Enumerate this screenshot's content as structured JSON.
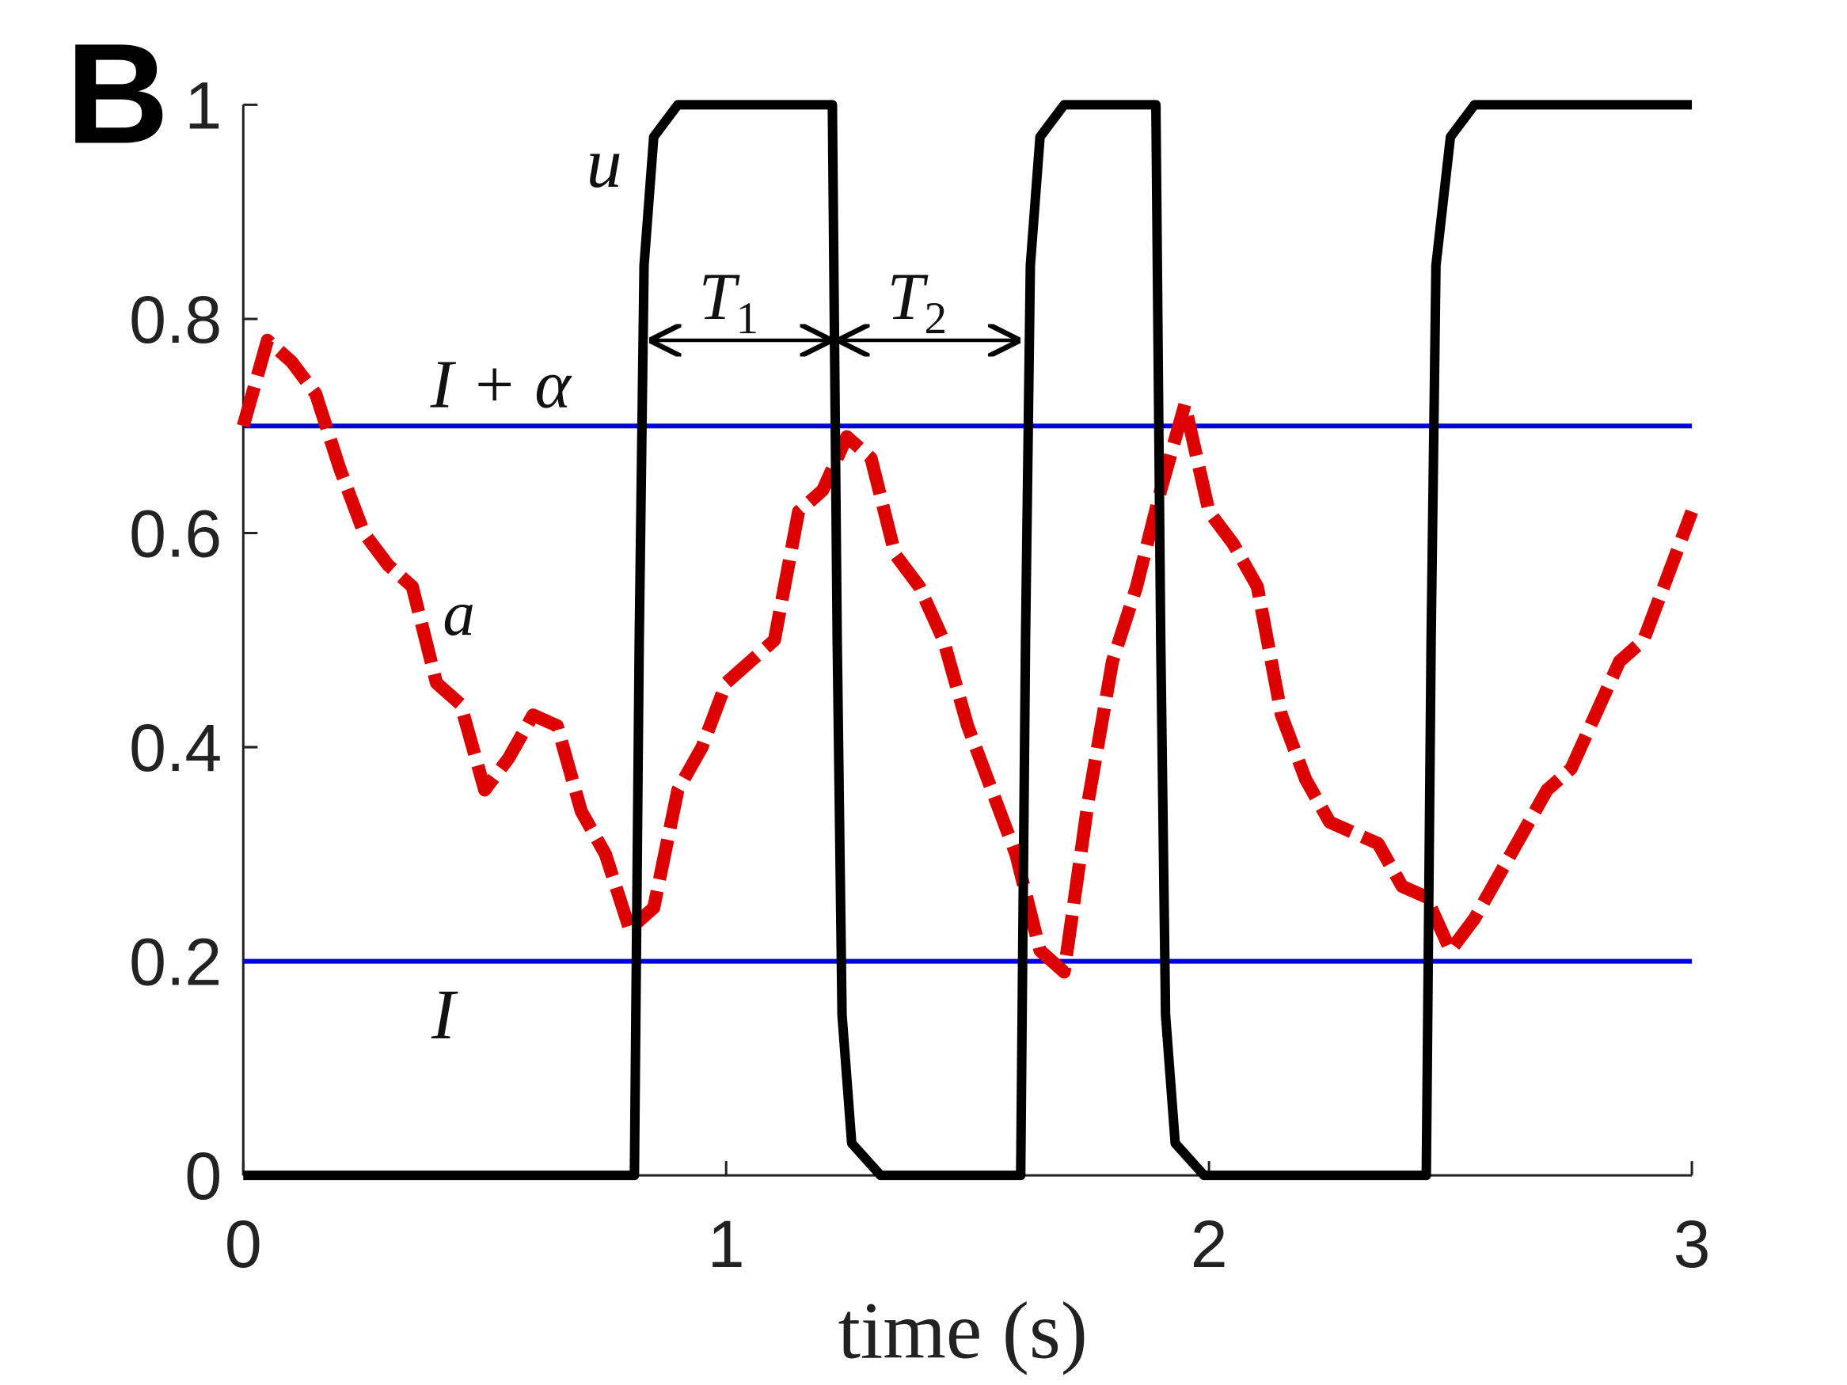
{
  "chart_data": {
    "type": "line",
    "panel_label": "B",
    "xlabel": "time (s)",
    "xlim": [
      0,
      3
    ],
    "xticks": [
      0,
      1,
      2,
      3
    ],
    "ylim": [
      0,
      1
    ],
    "yticks": [
      0,
      0.2,
      0.4,
      0.6,
      0.8,
      1
    ],
    "series": [
      {
        "name": "u",
        "color": "#000000",
        "style": "solid",
        "x": [
          0,
          0.81,
          0.82,
          0.83,
          0.85,
          0.9,
          1.22,
          1.23,
          1.24,
          1.26,
          1.32,
          1.61,
          1.62,
          1.63,
          1.65,
          1.7,
          1.89,
          1.9,
          1.91,
          1.93,
          1.99,
          2.45,
          2.46,
          2.47,
          2.5,
          2.55,
          3
        ],
        "values": [
          0,
          0,
          0.5,
          0.85,
          0.97,
          1,
          1,
          0.5,
          0.15,
          0.03,
          0,
          0,
          0.5,
          0.85,
          0.97,
          1,
          1,
          0.5,
          0.15,
          0.03,
          0,
          0,
          0.5,
          0.85,
          0.97,
          1,
          1
        ]
      },
      {
        "name": "a",
        "color": "#dd0000",
        "style": "dashed",
        "x": [
          0,
          0.05,
          0.1,
          0.15,
          0.2,
          0.25,
          0.3,
          0.35,
          0.4,
          0.45,
          0.5,
          0.55,
          0.6,
          0.65,
          0.7,
          0.75,
          0.8,
          0.85,
          0.9,
          0.95,
          1,
          1.05,
          1.1,
          1.15,
          1.2,
          1.25,
          1.3,
          1.35,
          1.4,
          1.45,
          1.5,
          1.55,
          1.6,
          1.65,
          1.7,
          1.75,
          1.8,
          1.85,
          1.9,
          1.95,
          2,
          2.05,
          2.1,
          2.15,
          2.2,
          2.25,
          2.3,
          2.35,
          2.4,
          2.45,
          2.5,
          2.55,
          2.6,
          2.65,
          2.7,
          2.75,
          2.8,
          2.85,
          2.9,
          2.95,
          3
        ],
        "values": [
          0.7,
          0.78,
          0.76,
          0.73,
          0.66,
          0.6,
          0.57,
          0.55,
          0.46,
          0.44,
          0.36,
          0.39,
          0.43,
          0.42,
          0.34,
          0.3,
          0.23,
          0.25,
          0.36,
          0.4,
          0.46,
          0.48,
          0.5,
          0.62,
          0.64,
          0.69,
          0.67,
          0.58,
          0.55,
          0.5,
          0.42,
          0.36,
          0.3,
          0.21,
          0.19,
          0.35,
          0.48,
          0.55,
          0.64,
          0.72,
          0.62,
          0.59,
          0.55,
          0.43,
          0.37,
          0.33,
          0.32,
          0.31,
          0.27,
          0.26,
          0.21,
          0.24,
          0.28,
          0.32,
          0.36,
          0.38,
          0.43,
          0.48,
          0.5,
          0.56,
          0.62
        ]
      },
      {
        "name": "I + α",
        "color": "#0000dd",
        "style": "solid",
        "x": [
          0,
          3
        ],
        "values": [
          0.7,
          0.7
        ]
      },
      {
        "name": "I",
        "color": "#0000dd",
        "style": "solid",
        "x": [
          0,
          3
        ],
        "values": [
          0.2,
          0.2
        ]
      }
    ],
    "annotations": [
      {
        "text": "T",
        "sub": "1"
      },
      {
        "text": "T",
        "sub": "2"
      }
    ]
  }
}
